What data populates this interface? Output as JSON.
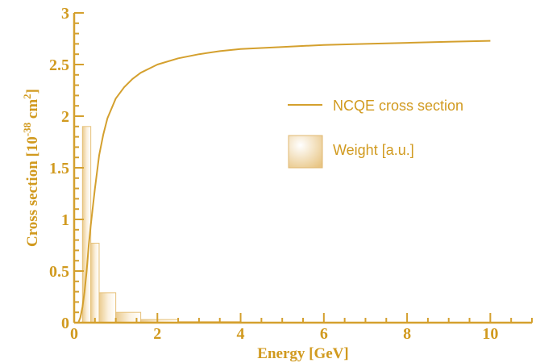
{
  "colors": {
    "axis": "#D4A02E",
    "text": "#D19A1F",
    "curve": "#D4A02E",
    "hist_fill": "#FBF1DF",
    "hist_edge": "#E6C17A"
  },
  "chart_data": {
    "type": "line",
    "xlabel": "Energy [GeV]",
    "ylabel": {
      "prefix": "Cross section [10",
      "exp1": "-38",
      "mid": " cm",
      "exp2": "2",
      "suffix": "]"
    },
    "xlim": [
      0,
      11
    ],
    "ylim": [
      0,
      3
    ],
    "x_ticks": [
      0,
      2,
      4,
      6,
      8,
      10
    ],
    "x_tick_labels": [
      "0",
      "2",
      "4",
      "6",
      "8",
      "10"
    ],
    "y_ticks": [
      0,
      0.5,
      1,
      1.5,
      2,
      2.5,
      3
    ],
    "y_tick_labels": [
      "0",
      "0.5",
      "1",
      "1.5",
      "2",
      "2.5",
      "3"
    ],
    "grid": false,
    "legend_position": "right",
    "legend": [
      "NCQE cross section",
      "Weight [a.u.]"
    ],
    "series": [
      {
        "name": "NCQE cross section",
        "kind": "line",
        "x": [
          0.1,
          0.15,
          0.2,
          0.25,
          0.3,
          0.35,
          0.4,
          0.5,
          0.6,
          0.7,
          0.8,
          1.0,
          1.2,
          1.4,
          1.6,
          1.8,
          2.0,
          2.5,
          3.0,
          3.5,
          4.0,
          5.0,
          6.0,
          7.0,
          8.0,
          9.0,
          10.0
        ],
        "y": [
          0.0,
          0.05,
          0.15,
          0.3,
          0.5,
          0.75,
          0.95,
          1.3,
          1.62,
          1.82,
          1.98,
          2.17,
          2.28,
          2.36,
          2.42,
          2.46,
          2.5,
          2.56,
          2.6,
          2.63,
          2.65,
          2.67,
          2.69,
          2.7,
          2.71,
          2.72,
          2.73
        ]
      },
      {
        "name": "Weight [a.u.]",
        "kind": "histogram",
        "bin_edges": [
          0.2,
          0.4,
          0.6,
          1.0,
          1.6,
          2.5,
          4.0
        ],
        "values": [
          1.9,
          0.77,
          0.29,
          0.1,
          0.03,
          0.01
        ]
      }
    ]
  }
}
